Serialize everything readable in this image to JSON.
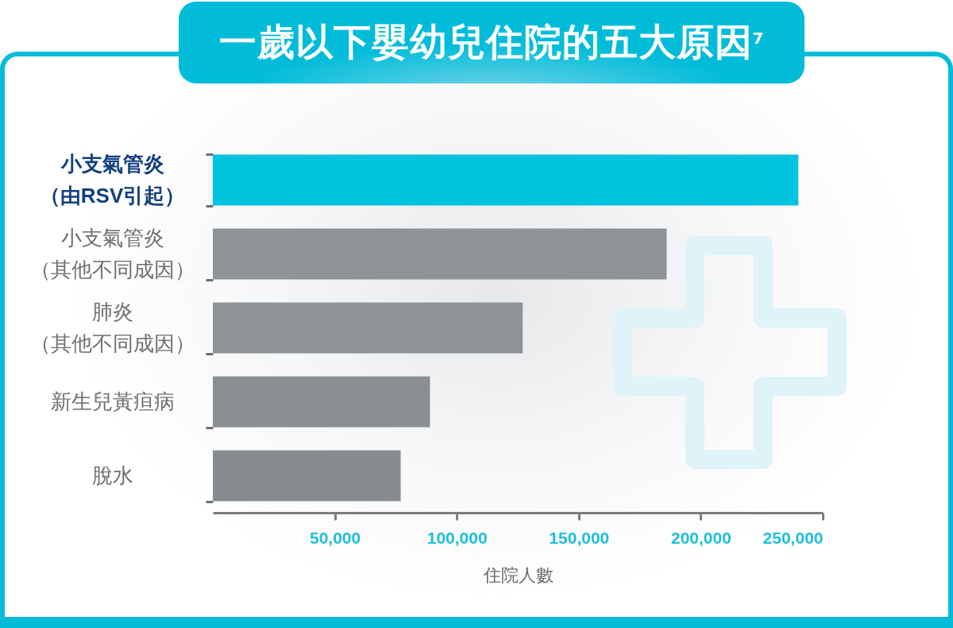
{
  "chart_data": {
    "type": "bar",
    "orientation": "horizontal",
    "title": "一歲以下嬰幼兒住院的五大原因$^{7}$",
    "xlabel": "住院人數",
    "categories": [
      "小支氣管炎（由RSV引起）",
      "小支氣管炎（其他不同成因）",
      "肺炎（其他不同成因）",
      "新生兒黃疸病",
      "脫水"
    ],
    "values": [
      240000,
      186000,
      127000,
      89000,
      77000
    ],
    "colors": [
      "#00c3de",
      "#8e9398",
      "#8e9398",
      "#8a8f94",
      "#868b90"
    ],
    "xlim": [
      0,
      250000
    ],
    "xticks": [
      {
        "value": 50000,
        "label": "50,000"
      },
      {
        "value": 100000,
        "label": "100,000"
      },
      {
        "value": 150000,
        "label": "150,000"
      },
      {
        "value": 200000,
        "label": "200,000"
      },
      {
        "value": 250000,
        "label": "250,000"
      }
    ]
  }
}
